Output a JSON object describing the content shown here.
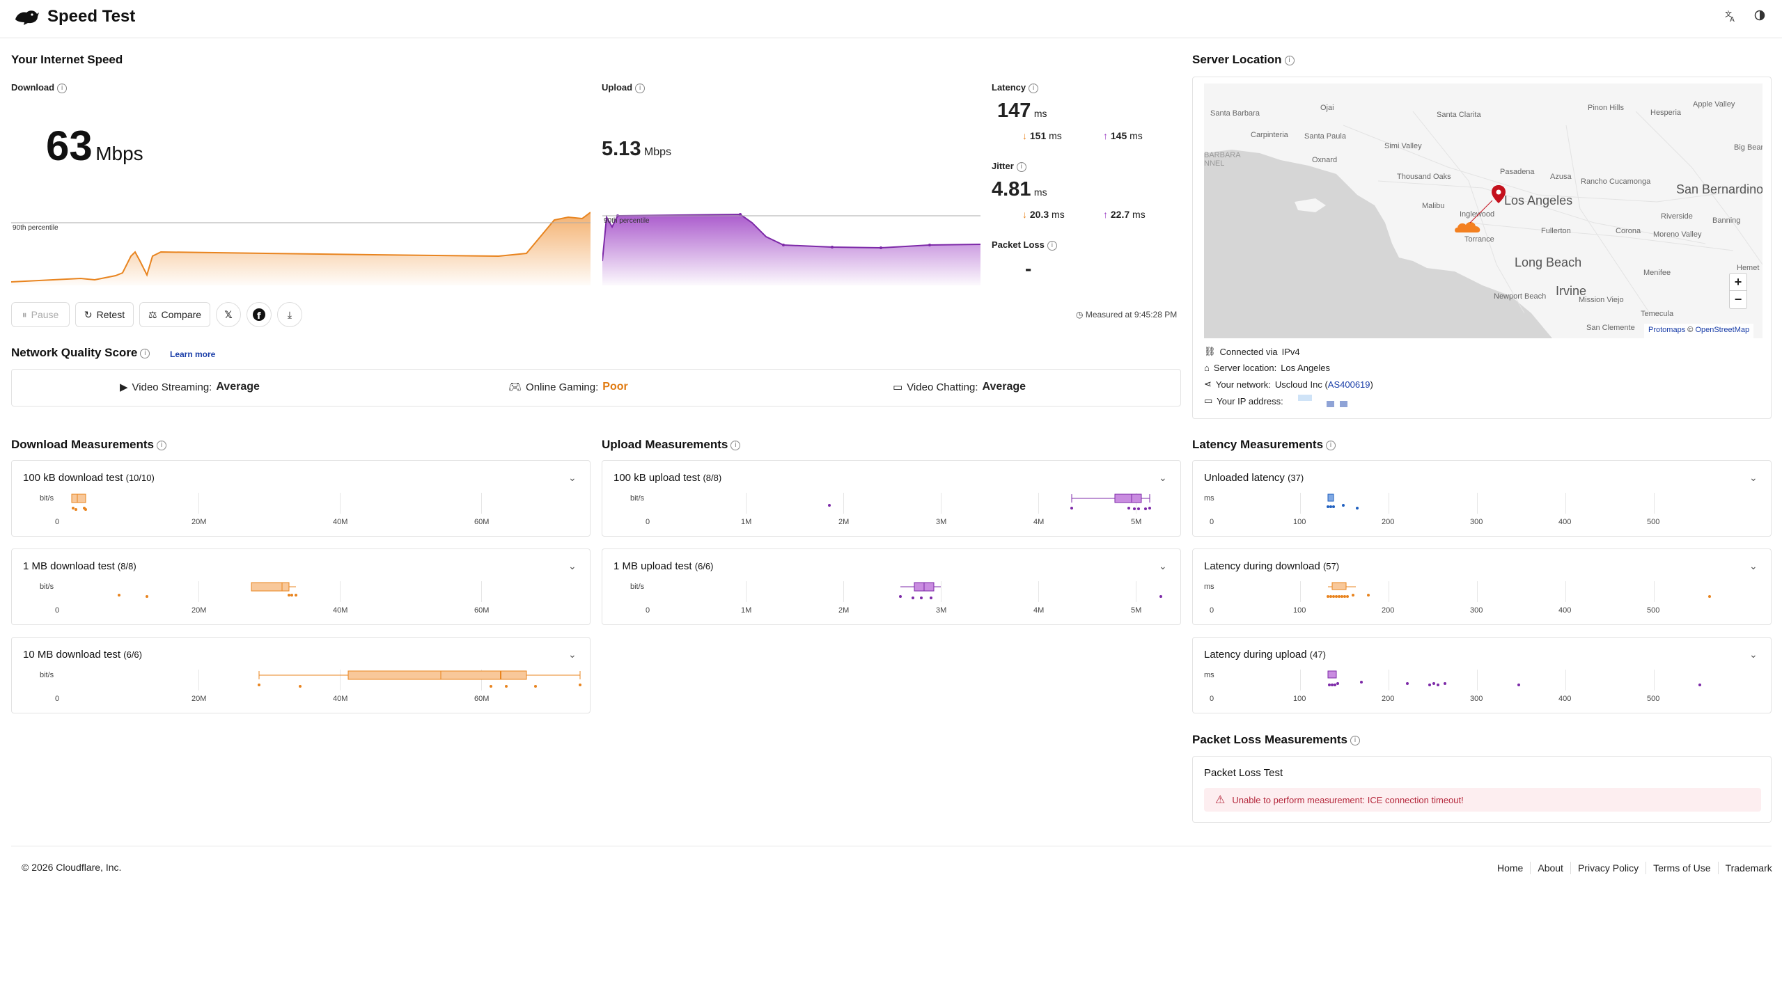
{
  "header": {
    "title": "Speed Test",
    "translate_icon": "translate-icon",
    "theme_icon": "contrast-icon"
  },
  "speed": {
    "section_title": "Your Internet Speed",
    "download": {
      "label": "Download",
      "value": "63",
      "unit": "Mbps",
      "percentile_label": "90th percentile"
    },
    "upload": {
      "label": "Upload",
      "value": "5.13",
      "unit": "Mbps",
      "percentile_label": "90th percentile"
    },
    "latency": {
      "label": "Latency",
      "value": "147",
      "unit": "ms",
      "down": "151",
      "up": "145",
      "sub_unit": "ms"
    },
    "jitter": {
      "label": "Jitter",
      "value": "4.81",
      "unit": "ms",
      "down": "20.3",
      "up": "22.7",
      "sub_unit": "ms"
    },
    "packet_loss": {
      "label": "Packet Loss",
      "value": "-"
    },
    "measured_at": "Measured at 9:45:28 PM"
  },
  "actions": {
    "pause": "Pause",
    "retest": "Retest",
    "compare": "Compare",
    "x_icon": "x-logo-icon",
    "facebook_icon": "facebook-icon",
    "download_icon": "download-icon"
  },
  "quality": {
    "title": "Network Quality Score",
    "learn_more": "Learn more",
    "items": [
      {
        "label": "Video Streaming:",
        "value": "Average",
        "color": "#222222"
      },
      {
        "label": "Online Gaming:",
        "value": "Poor",
        "color": "#e07a10"
      },
      {
        "label": "Video Chatting:",
        "value": "Average",
        "color": "#222222"
      }
    ]
  },
  "server": {
    "title": "Server Location",
    "connected_via_label": "Connected via",
    "connected_via": "IPv4",
    "location_label": "Server location:",
    "location": "Los Angeles",
    "network_label": "Your network:",
    "network": "Uscloud Inc",
    "asn": "AS400619",
    "ip_label": "Your IP address:",
    "map_attribution_1": "Protomaps",
    "map_attribution_sep": "©",
    "map_attribution_2": "OpenStreetMap",
    "zoom_in": "+",
    "zoom_out": "−",
    "places_small": [
      "Santa Barbara",
      "Ojai",
      "Santa Clarita",
      "Pinon Hills",
      "Hesperia",
      "Apple Valley",
      "Carpinteria",
      "Santa Paula",
      "Simi Valley",
      "Big Bear C",
      "Oxnard",
      "Thousand Oaks",
      "Pasadena",
      "Azusa",
      "Rancho Cucamonga",
      "Malibu",
      "Inglewood",
      "Riverside",
      "Banning",
      "Torrance",
      "Fullerton",
      "Corona",
      "Moreno Valley",
      "Menifee",
      "Hemet",
      "Newport Beach",
      "Mission Viejo",
      "Temecula",
      "San Clemente",
      "BARBARA",
      "NNEL"
    ],
    "places_big": [
      "Los Angeles",
      "San Bernardino",
      "Long Beach",
      "Irvine"
    ]
  },
  "download_measurements": {
    "title": "Download Measurements",
    "tests": [
      {
        "title": "100 kB download test",
        "count": "(10/10)"
      },
      {
        "title": "1 MB download test",
        "count": "(8/8)"
      },
      {
        "title": "10 MB download test",
        "count": "(6/6)"
      }
    ],
    "unit": "bit/s",
    "ticks": [
      "0",
      "20M",
      "40M",
      "60M"
    ]
  },
  "upload_measurements": {
    "title": "Upload Measurements",
    "tests": [
      {
        "title": "100 kB upload test",
        "count": "(8/8)"
      },
      {
        "title": "1 MB upload test",
        "count": "(6/6)"
      }
    ],
    "unit": "bit/s",
    "ticks": [
      "0",
      "1M",
      "2M",
      "3M",
      "4M",
      "5M"
    ]
  },
  "latency_measurements": {
    "title": "Latency Measurements",
    "tests": [
      {
        "title": "Unloaded latency",
        "count": "(37)"
      },
      {
        "title": "Latency during download",
        "count": "(57)"
      },
      {
        "title": "Latency during upload",
        "count": "(47)"
      }
    ],
    "unit": "ms",
    "ticks": [
      "0",
      "100",
      "200",
      "300",
      "400",
      "500"
    ]
  },
  "packet_loss_measurements": {
    "title": "Packet Loss Measurements",
    "test_title": "Packet Loss Test",
    "error": "Unable to perform measurement: ICE connection timeout!"
  },
  "footer": {
    "copyright": "© 2026 Cloudflare, Inc.",
    "links": [
      "Home",
      "About",
      "Privacy Policy",
      "Terms of Use",
      "Trademark"
    ]
  },
  "colors": {
    "download": "#f0953c",
    "upload": "#9c3fc4",
    "latency_unloaded": "#1f5fbf",
    "error": "#b5283c"
  }
}
